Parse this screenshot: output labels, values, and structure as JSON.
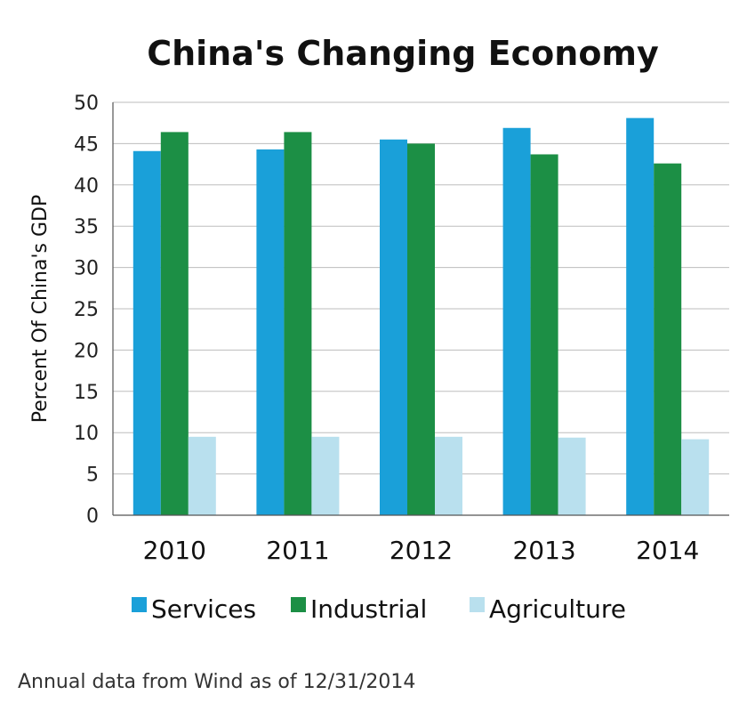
{
  "chart_data": {
    "type": "bar",
    "title": "China's Changing Economy",
    "xlabel": "",
    "ylabel": "Percent Of China's GDP",
    "ylim": [
      0,
      50
    ],
    "yticks": [
      0,
      5,
      10,
      15,
      20,
      25,
      30,
      35,
      40,
      45,
      50
    ],
    "categories": [
      "2010",
      "2011",
      "2012",
      "2013",
      "2014"
    ],
    "series": [
      {
        "name": "Services",
        "color": "#1aa0d9",
        "values": [
          44.1,
          44.3,
          45.5,
          46.9,
          48.1
        ]
      },
      {
        "name": "Industrial",
        "color": "#1c8f45",
        "values": [
          46.4,
          46.4,
          45.0,
          43.7,
          42.6
        ]
      },
      {
        "name": "Agriculture",
        "color": "#b9e0ee",
        "values": [
          9.5,
          9.5,
          9.5,
          9.4,
          9.2
        ]
      }
    ],
    "grid": true,
    "legend_position": "bottom"
  },
  "footnote": "Annual data from Wind as of 12/31/2014"
}
